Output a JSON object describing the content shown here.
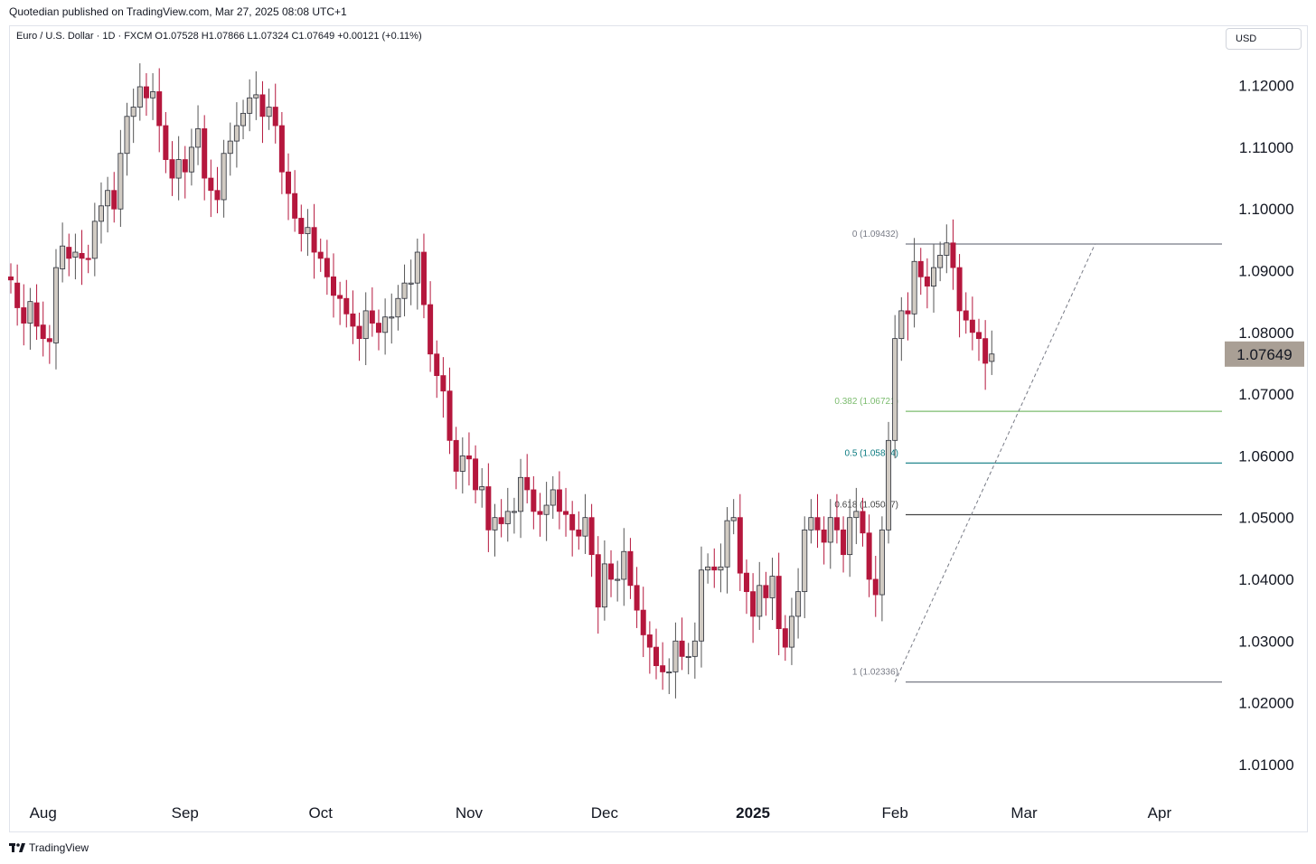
{
  "header": {
    "published": "Quotedian published on TradingView.com, Mar 27, 2025 08:08 UTC+1",
    "symbol_line": "Euro / U.S. Dollar · 1D · FXCM  O1.07528  H1.07866  L1.07324  C1.07649  +0.00121 (+0.11%)",
    "currency": "USD"
  },
  "footer": {
    "brand": "TradingView"
  },
  "colors": {
    "up": "#d1cbc3",
    "down": "#b5173d",
    "outline": "#2a2e39",
    "price_tag": "#a99f95",
    "fib_0": "#787b86",
    "fib_382": "#7cbc6f",
    "fib_5": "#0a7a80",
    "fib_618": "#444444",
    "fib_1": "#787b86"
  },
  "chart_data": {
    "type": "candlestick",
    "title": "Euro / U.S. Dollar",
    "ylim": [
      1.005,
      1.128
    ],
    "y_ticks": [
      "1.12000",
      "1.11000",
      "1.10000",
      "1.09000",
      "1.08000",
      "1.07000",
      "1.06000",
      "1.05000",
      "1.04000",
      "1.03000",
      "1.02000",
      "1.01000"
    ],
    "y_tick_values": [
      1.12,
      1.11,
      1.1,
      1.09,
      1.08,
      1.07,
      1.06,
      1.05,
      1.04,
      1.03,
      1.02,
      1.01
    ],
    "x_ticks": [
      {
        "label": "Aug",
        "date": "2024-08-01"
      },
      {
        "label": "Sep",
        "date": "2024-09-02"
      },
      {
        "label": "Oct",
        "date": "2024-10-01"
      },
      {
        "label": "Nov",
        "date": "2024-11-01"
      },
      {
        "label": "Dec",
        "date": "2024-12-02"
      },
      {
        "label": "2025",
        "date": "2025-01-02"
      },
      {
        "label": "Feb",
        "date": "2025-02-03"
      },
      {
        "label": "Mar",
        "date": "2025-03-03"
      },
      {
        "label": "Apr",
        "date": "2025-04-01"
      }
    ],
    "last_price": "1.07649",
    "last_price_value": 1.07649,
    "fibonacci": [
      {
        "label": "0 (1.09432)",
        "value": 1.09432,
        "color_key": "fib_0"
      },
      {
        "label": "0.382 (1.06721)",
        "value": 1.06721,
        "color_key": "fib_382"
      },
      {
        "label": "0.5 (1.05884)",
        "value": 1.05884,
        "color_key": "fib_5"
      },
      {
        "label": "0.618 (1.05047)",
        "value": 1.05047,
        "color_key": "fib_618"
      },
      {
        "label": "1 (1.02336)",
        "value": 1.02336,
        "color_key": "fib_1"
      }
    ],
    "fib_anchor": {
      "from_date": "2025-02-03",
      "from_value": 1.02336,
      "to_date": "2025-03-18",
      "to_value": 1.09432
    },
    "closes": [
      1.0885,
      1.084,
      1.0815,
      1.085,
      1.081,
      1.079,
      1.0785,
      1.0905,
      1.094,
      1.092,
      1.093,
      1.092,
      1.0918,
      1.098,
      1.1005,
      1.103,
      1.1,
      1.109,
      1.115,
      1.1165,
      1.1198,
      1.118,
      1.119,
      1.1135,
      1.108,
      1.105,
      1.108,
      1.106,
      1.11,
      1.113,
      1.105,
      1.103,
      1.1015,
      1.109,
      1.111,
      1.1135,
      1.1155,
      1.118,
      1.1185,
      1.115,
      1.1165,
      1.1135,
      1.106,
      1.1025,
      1.0985,
      1.096,
      1.097,
      1.093,
      1.092,
      1.089,
      1.086,
      1.0855,
      1.083,
      1.081,
      1.079,
      1.0835,
      1.0815,
      1.08,
      1.0825,
      1.0825,
      1.0855,
      1.088,
      1.088,
      1.093,
      1.0845,
      1.0765,
      1.073,
      1.0705,
      1.0625,
      1.0575,
      1.06,
      1.0595,
      1.0545,
      1.055,
      1.048,
      1.05,
      1.049,
      1.051,
      1.051,
      1.0565,
      1.0545,
      1.051,
      1.0505,
      1.052,
      1.0545,
      1.051,
      1.0505,
      1.048,
      1.047,
      1.05,
      1.044,
      1.0355,
      1.0425,
      1.04,
      1.04,
      1.0445,
      1.039,
      1.035,
      1.031,
      1.029,
      1.026,
      1.025,
      1.025,
      1.03,
      1.0275,
      1.0275,
      1.03,
      1.0415,
      1.042,
      1.0415,
      1.042,
      1.0495,
      1.05,
      1.041,
      1.038,
      1.034,
      1.039,
      1.037,
      1.0405,
      1.032,
      1.029,
      1.034,
      1.038,
      1.048,
      1.05,
      1.048,
      1.046,
      1.05,
      1.048,
      1.044,
      1.05,
      1.051,
      1.0475,
      1.04,
      1.0375,
      1.048,
      1.0625,
      1.079,
      1.0835,
      1.083,
      1.0915,
      1.089,
      1.0875,
      1.0905,
      1.0925,
      1.0945,
      1.0905,
      1.0835,
      1.082,
      1.08,
      1.079,
      1.075,
      1.0765
    ],
    "opens": [
      1.089,
      1.088,
      1.084,
      1.0815,
      1.0848,
      1.0812,
      1.079,
      1.0783,
      1.0903,
      1.0938,
      1.0922,
      1.0928,
      1.092,
      1.092,
      1.098,
      1.1005,
      1.103,
      1.1,
      1.109,
      1.115,
      1.1165,
      1.1198,
      1.118,
      1.119,
      1.1135,
      1.108,
      1.105,
      1.108,
      1.106,
      1.11,
      1.113,
      1.105,
      1.103,
      1.1015,
      1.109,
      1.111,
      1.1135,
      1.1155,
      1.118,
      1.1185,
      1.115,
      1.1165,
      1.1135,
      1.106,
      1.1025,
      1.0985,
      1.096,
      1.097,
      1.093,
      1.092,
      1.089,
      1.086,
      1.0855,
      1.083,
      1.081,
      1.079,
      1.0835,
      1.0815,
      1.08,
      1.0825,
      1.0825,
      1.0855,
      1.088,
      1.088,
      1.093,
      1.0845,
      1.0765,
      1.073,
      1.0705,
      1.0625,
      1.0575,
      1.06,
      1.0595,
      1.0545,
      1.055,
      1.048,
      1.05,
      1.049,
      1.051,
      1.051,
      1.0565,
      1.0545,
      1.051,
      1.0505,
      1.052,
      1.0545,
      1.051,
      1.0505,
      1.048,
      1.047,
      1.05,
      1.044,
      1.0355,
      1.0425,
      1.04,
      1.04,
      1.0445,
      1.039,
      1.035,
      1.031,
      1.029,
      1.026,
      1.025,
      1.025,
      1.03,
      1.0275,
      1.0275,
      1.03,
      1.0415,
      1.042,
      1.0415,
      1.042,
      1.0495,
      1.05,
      1.041,
      1.038,
      1.034,
      1.039,
      1.037,
      1.0405,
      1.032,
      1.029,
      1.034,
      1.038,
      1.048,
      1.05,
      1.048,
      1.046,
      1.05,
      1.048,
      1.044,
      1.05,
      1.051,
      1.0475,
      1.04,
      1.0375,
      1.048,
      1.0625,
      1.079,
      1.0835,
      1.083,
      1.0915,
      1.089,
      1.0875,
      1.0905,
      1.0925,
      1.0945,
      1.0905,
      1.0835,
      1.082,
      1.08,
      1.079,
      1.0753
    ]
  }
}
